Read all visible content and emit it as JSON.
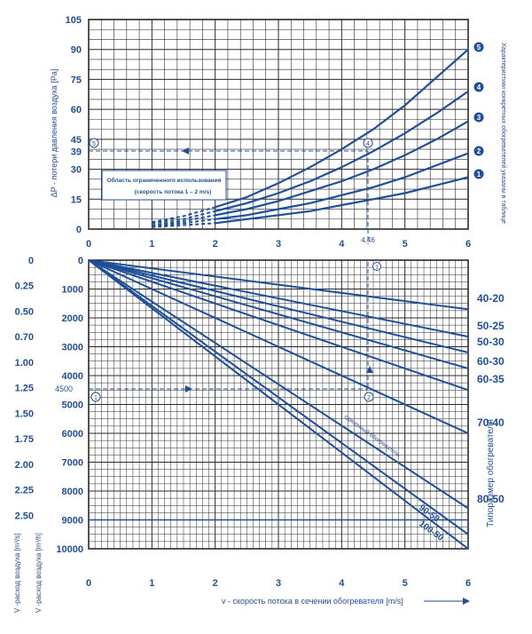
{
  "chart_data": [
    {
      "type": "line",
      "title": "",
      "ylabel": "ΔP - потери давления воздуха [Pa]",
      "right_label": "Характеристики конкретных обогревателей указаны в таблице",
      "xlim": [
        0,
        6
      ],
      "ylim": [
        0,
        105
      ],
      "x_ticks": [
        "0",
        "1",
        "2",
        "3",
        "4",
        "5",
        "6"
      ],
      "y_ticks": [
        "0",
        "15",
        "30",
        "39",
        "45",
        "60",
        "75",
        "90",
        "105"
      ],
      "marked_value_x": "4,46",
      "region_box": {
        "title": "Область ограниченного использования",
        "subtitle": "(скорость потока 1 – 2 m/s)"
      },
      "step_markers": [
        "1",
        "2",
        "3",
        "4",
        "5"
      ],
      "series": [
        {
          "name": "1",
          "x": [
            1,
            1.5,
            2,
            2.5,
            3,
            3.5,
            4,
            4.5,
            5,
            5.5,
            6
          ],
          "y": [
            1,
            2,
            3,
            5,
            7,
            9,
            12,
            15,
            18,
            22,
            26
          ]
        },
        {
          "name": "2",
          "x": [
            1,
            1.5,
            2,
            2.5,
            3,
            3.5,
            4,
            4.5,
            5,
            5.5,
            6
          ],
          "y": [
            1.5,
            3,
            5,
            7,
            10,
            13,
            17,
            21,
            26,
            32,
            38
          ]
        },
        {
          "name": "3",
          "x": [
            1,
            1.5,
            2,
            2.5,
            3,
            3.5,
            4,
            4.5,
            5,
            5.5,
            6
          ],
          "y": [
            2,
            4,
            7,
            10,
            14,
            19,
            24,
            30,
            37,
            45,
            54
          ]
        },
        {
          "name": "4",
          "x": [
            1,
            1.5,
            2,
            2.5,
            3,
            3.5,
            4,
            4.5,
            5,
            5.5,
            6
          ],
          "y": [
            3,
            5,
            9,
            13,
            18,
            24,
            31,
            39,
            48,
            58,
            69
          ]
        },
        {
          "name": "5",
          "x": [
            1,
            1.5,
            2,
            2.5,
            3,
            3.5,
            4,
            4.5,
            5,
            5.5,
            6
          ],
          "y": [
            3.5,
            6.5,
            11,
            16,
            23,
            31,
            40,
            50,
            62,
            76,
            90
          ]
        }
      ]
    },
    {
      "type": "line",
      "xlabel": "v - скорость потока в сечении обогревателя [m/s]",
      "xlim": [
        0,
        6
      ],
      "ylim": [
        0,
        10000
      ],
      "x_ticks": [
        "0",
        "1",
        "2",
        "3",
        "4",
        "5",
        "6"
      ],
      "y_ticks_m3h": [
        "0",
        "1000",
        "2000",
        "3000",
        "4000",
        "4500",
        "5000",
        "6000",
        "7000",
        "8000",
        "9000",
        "10000"
      ],
      "y_ticks_m3s": [
        "0",
        "0.25",
        "0.50",
        "0.70",
        "1.00",
        "1.25",
        "1.50",
        "1.75",
        "2.00",
        "2.25",
        "2.50"
      ],
      "left_axis_label_1": "V -расход воздуха [m³/s]",
      "left_axis_label_2": "V -расход воздуха [m³/h]",
      "right_axis_label": "Типоразмер обогревателя",
      "diag_note": "сдвоенный обогреватель",
      "step_markers": [
        "1",
        "2",
        "3"
      ],
      "series": [
        {
          "name": "40-20",
          "x": [
            0,
            6
          ],
          "y": [
            0,
            1700
          ]
        },
        {
          "name": "50-25",
          "x": [
            0,
            6
          ],
          "y": [
            0,
            2650
          ]
        },
        {
          "name": "50-30",
          "x": [
            0,
            6
          ],
          "y": [
            0,
            3200
          ]
        },
        {
          "name": "60-30",
          "x": [
            0,
            6
          ],
          "y": [
            0,
            3750
          ]
        },
        {
          "name": "60-35",
          "x": [
            0,
            6
          ],
          "y": [
            0,
            4500
          ]
        },
        {
          "name": "70-40",
          "x": [
            0,
            6
          ],
          "y": [
            0,
            6000
          ]
        },
        {
          "name": "80-50",
          "x": [
            0,
            6
          ],
          "y": [
            0,
            8600
          ]
        },
        {
          "name": "90-50",
          "x": [
            0,
            6
          ],
          "y": [
            0,
            9500
          ]
        },
        {
          "name": "100-50",
          "x": [
            0,
            6
          ],
          "y": [
            0,
            10000
          ]
        }
      ],
      "visible_size_labels": [
        "40-20",
        "50-25",
        "50-30",
        "60-30",
        "60-35",
        "70-40",
        "80-50"
      ],
      "diag_labels": [
        "90-50",
        "100-50"
      ]
    }
  ],
  "colors": {
    "line": "#1f4f9a",
    "grid": "#2a2a2a"
  }
}
